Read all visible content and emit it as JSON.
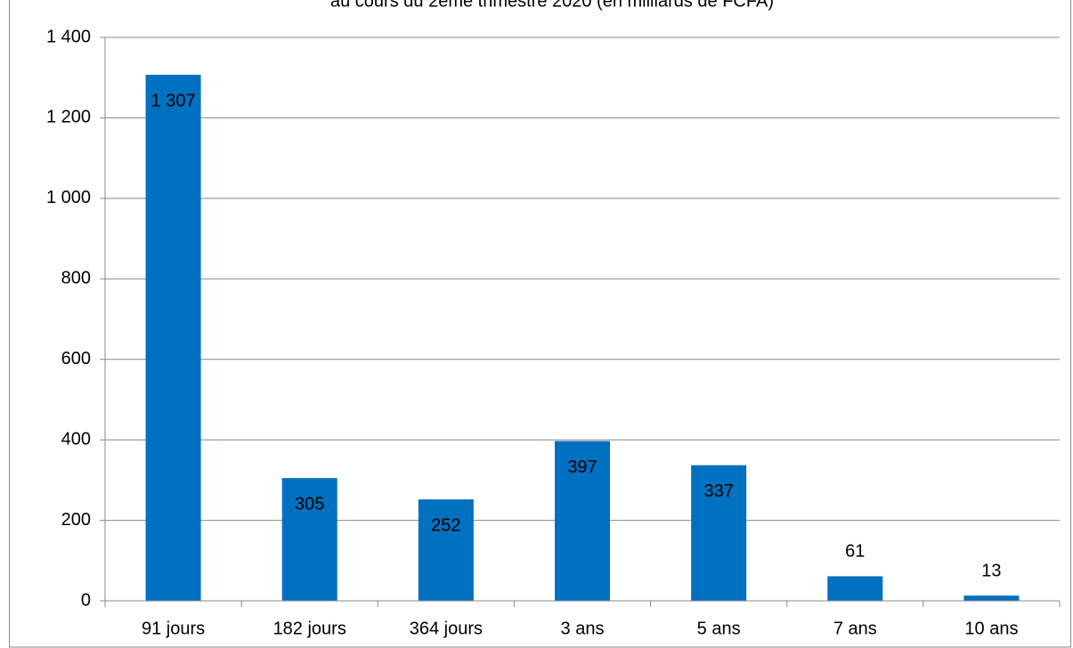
{
  "chart_data": {
    "type": "bar",
    "title": "au cours du 2ème trimestre 2020 (en milliards de FCFA)",
    "categories": [
      "91 jours",
      "182 jours",
      "364 jours",
      "3 ans",
      "5 ans",
      "7 ans",
      "10 ans"
    ],
    "values": [
      1307,
      305,
      252,
      397,
      337,
      61,
      13
    ],
    "value_labels": [
      "1 307",
      "305",
      "252",
      "397",
      "337",
      "61",
      "13"
    ],
    "color": "#0070c0",
    "ylim": [
      0,
      1400
    ],
    "yticks": [
      0,
      200,
      400,
      600,
      800,
      {
        "value": 1000,
        "label": "1 000"
      },
      {
        "value": 1200,
        "label": "1 200"
      },
      {
        "value": 1400,
        "label": "1 400"
      }
    ],
    "grid": true
  }
}
